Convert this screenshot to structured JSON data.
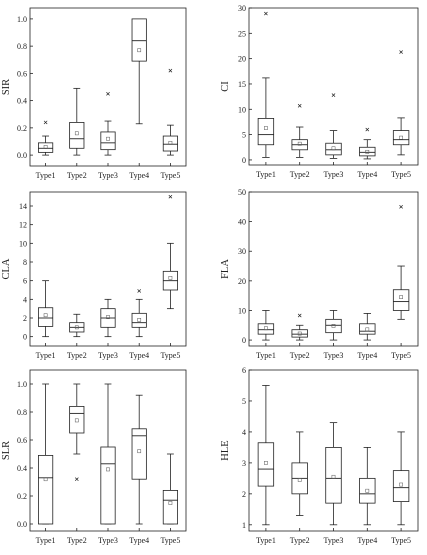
{
  "colors": {
    "axis": "#222222",
    "box": "#222222",
    "median": "#222222",
    "mean_marker": "#555555",
    "outlier": "#222222"
  },
  "chart_data": [
    {
      "type": "boxplot",
      "ylabel": "SIR",
      "ylim": [
        -0.08,
        1.08
      ],
      "yticks": [
        0.0,
        0.2,
        0.4,
        0.6,
        0.8,
        1.0
      ],
      "yticklabels": [
        "0.0",
        "0.2",
        "0.4",
        "0.6",
        "0.8",
        "1.0"
      ],
      "categories": [
        "Type1",
        "Type2",
        "Type3",
        "Type4",
        "Type5"
      ],
      "boxes": [
        {
          "whisker_low": 0.0,
          "q1": 0.02,
          "median": 0.05,
          "q3": 0.09,
          "whisker_high": 0.14,
          "mean": 0.06,
          "outliers": [
            0.24
          ]
        },
        {
          "whisker_low": 0.0,
          "q1": 0.05,
          "median": 0.12,
          "q3": 0.24,
          "whisker_high": 0.49,
          "mean": 0.16,
          "outliers": []
        },
        {
          "whisker_low": 0.0,
          "q1": 0.04,
          "median": 0.09,
          "q3": 0.17,
          "whisker_high": 0.25,
          "mean": 0.12,
          "outliers": [
            0.45
          ]
        },
        {
          "whisker_low": 0.23,
          "q1": 0.69,
          "median": 0.84,
          "q3": 1.0,
          "whisker_high": 1.0,
          "mean": 0.77,
          "outliers": []
        },
        {
          "whisker_low": 0.0,
          "q1": 0.03,
          "median": 0.08,
          "q3": 0.14,
          "whisker_high": 0.22,
          "mean": 0.09,
          "outliers": [
            0.62
          ]
        }
      ]
    },
    {
      "type": "boxplot",
      "ylabel": "CI",
      "ylim": [
        -1,
        30
      ],
      "yticks": [
        0,
        5,
        10,
        15,
        20,
        25,
        30
      ],
      "yticklabels": [
        "0",
        "5",
        "10",
        "15",
        "20",
        "25",
        "30"
      ],
      "categories": [
        "Type1",
        "Type2",
        "Type3",
        "Type4",
        "Type5"
      ],
      "boxes": [
        {
          "whisker_low": 0.5,
          "q1": 3.0,
          "median": 5.0,
          "q3": 8.2,
          "whisker_high": 16.2,
          "mean": 6.3,
          "outliers": [
            28.9
          ]
        },
        {
          "whisker_low": 0.5,
          "q1": 2.0,
          "median": 3.0,
          "q3": 4.0,
          "whisker_high": 6.5,
          "mean": 3.2,
          "outliers": [
            10.7
          ]
        },
        {
          "whisker_low": 0.3,
          "q1": 1.0,
          "median": 2.0,
          "q3": 3.3,
          "whisker_high": 5.8,
          "mean": 2.3,
          "outliers": [
            12.8
          ]
        },
        {
          "whisker_low": 0.2,
          "q1": 0.8,
          "median": 1.5,
          "q3": 2.5,
          "whisker_high": 4.0,
          "mean": 1.6,
          "outliers": [
            6.0
          ]
        },
        {
          "whisker_low": 1.0,
          "q1": 3.0,
          "median": 4.0,
          "q3": 5.8,
          "whisker_high": 8.3,
          "mean": 4.4,
          "outliers": [
            21.3
          ]
        }
      ]
    },
    {
      "type": "boxplot",
      "ylabel": "CLA",
      "ylim": [
        -1,
        15.5
      ],
      "yticks": [
        0,
        2,
        4,
        6,
        8,
        10,
        12,
        14
      ],
      "yticklabels": [
        "0",
        "2",
        "4",
        "6",
        "8",
        "10",
        "12",
        "14"
      ],
      "categories": [
        "Type1",
        "Type2",
        "Type3",
        "Type4",
        "Type5"
      ],
      "boxes": [
        {
          "whisker_low": 0.0,
          "q1": 1.1,
          "median": 2.0,
          "q3": 3.1,
          "whisker_high": 6.0,
          "mean": 2.3,
          "outliers": []
        },
        {
          "whisker_low": 0.0,
          "q1": 0.5,
          "median": 1.0,
          "q3": 1.5,
          "whisker_high": 2.4,
          "mean": 1.0,
          "outliers": []
        },
        {
          "whisker_low": 0.0,
          "q1": 1.0,
          "median": 2.0,
          "q3": 3.0,
          "whisker_high": 4.0,
          "mean": 2.1,
          "outliers": []
        },
        {
          "whisker_low": 0.0,
          "q1": 1.0,
          "median": 1.5,
          "q3": 2.5,
          "whisker_high": 4.0,
          "mean": 1.8,
          "outliers": [
            4.9
          ]
        },
        {
          "whisker_low": 3.0,
          "q1": 5.0,
          "median": 6.0,
          "q3": 7.0,
          "whisker_high": 10.0,
          "mean": 6.3,
          "outliers": [
            15.0
          ]
        }
      ]
    },
    {
      "type": "boxplot",
      "ylabel": "FLA",
      "ylim": [
        -2,
        50
      ],
      "yticks": [
        0,
        10,
        20,
        30,
        40,
        50
      ],
      "yticklabels": [
        "0",
        "10",
        "20",
        "30",
        "40",
        "50"
      ],
      "categories": [
        "Type1",
        "Type2",
        "Type3",
        "Type4",
        "Type5"
      ],
      "boxes": [
        {
          "whisker_low": 0.0,
          "q1": 2.0,
          "median": 3.5,
          "q3": 5.5,
          "whisker_high": 10.0,
          "mean": 4.0,
          "outliers": []
        },
        {
          "whisker_low": 0.0,
          "q1": 1.0,
          "median": 2.0,
          "q3": 3.5,
          "whisker_high": 5.0,
          "mean": 2.2,
          "outliers": [
            8.3
          ]
        },
        {
          "whisker_low": 0.0,
          "q1": 2.5,
          "median": 5.0,
          "q3": 7.0,
          "whisker_high": 10.0,
          "mean": 4.8,
          "outliers": []
        },
        {
          "whisker_low": 0.0,
          "q1": 2.0,
          "median": 3.0,
          "q3": 5.5,
          "whisker_high": 9.0,
          "mean": 3.6,
          "outliers": []
        },
        {
          "whisker_low": 7.0,
          "q1": 10.0,
          "median": 13.0,
          "q3": 17.0,
          "whisker_high": 25.0,
          "mean": 14.5,
          "outliers": [
            45.0
          ]
        }
      ]
    },
    {
      "type": "boxplot",
      "ylabel": "SLR",
      "ylim": [
        -0.05,
        1.1
      ],
      "yticks": [
        0.0,
        0.2,
        0.4,
        0.6,
        0.8,
        1.0
      ],
      "yticklabels": [
        "0.0",
        "0.2",
        "0.4",
        "0.6",
        "0.8",
        "1.0"
      ],
      "categories": [
        "Type1",
        "Type2",
        "Type3",
        "Type4",
        "Type5"
      ],
      "boxes": [
        {
          "whisker_low": 0.0,
          "q1": 0.0,
          "median": 0.33,
          "q3": 0.49,
          "whisker_high": 1.0,
          "mean": 0.32,
          "outliers": []
        },
        {
          "whisker_low": 0.5,
          "q1": 0.65,
          "median": 0.79,
          "q3": 0.84,
          "whisker_high": 1.0,
          "mean": 0.74,
          "outliers": [
            0.32
          ]
        },
        {
          "whisker_low": 0.0,
          "q1": 0.0,
          "median": 0.43,
          "q3": 0.55,
          "whisker_high": 1.0,
          "mean": 0.39,
          "outliers": []
        },
        {
          "whisker_low": 0.0,
          "q1": 0.32,
          "median": 0.63,
          "q3": 0.68,
          "whisker_high": 0.92,
          "mean": 0.52,
          "outliers": []
        },
        {
          "whisker_low": 0.0,
          "q1": 0.0,
          "median": 0.17,
          "q3": 0.24,
          "whisker_high": 0.5,
          "mean": 0.15,
          "outliers": []
        }
      ]
    },
    {
      "type": "boxplot",
      "ylabel": "HLE",
      "ylim": [
        0.8,
        6.0
      ],
      "yticks": [
        1,
        2,
        3,
        4,
        5,
        6
      ],
      "yticklabels": [
        "1",
        "2",
        "3",
        "4",
        "5",
        "6"
      ],
      "categories": [
        "Type1",
        "Type2",
        "Type3",
        "Type4",
        "Type5"
      ],
      "boxes": [
        {
          "whisker_low": 1.0,
          "q1": 2.25,
          "median": 2.8,
          "q3": 3.65,
          "whisker_high": 5.5,
          "mean": 3.0,
          "outliers": []
        },
        {
          "whisker_low": 1.3,
          "q1": 2.0,
          "median": 2.5,
          "q3": 3.0,
          "whisker_high": 4.0,
          "mean": 2.45,
          "outliers": []
        },
        {
          "whisker_low": 1.0,
          "q1": 1.7,
          "median": 2.5,
          "q3": 3.5,
          "whisker_high": 4.3,
          "mean": 2.55,
          "outliers": []
        },
        {
          "whisker_low": 1.0,
          "q1": 1.7,
          "median": 2.0,
          "q3": 2.5,
          "whisker_high": 3.5,
          "mean": 2.1,
          "outliers": []
        },
        {
          "whisker_low": 1.0,
          "q1": 1.75,
          "median": 2.2,
          "q3": 2.75,
          "whisker_high": 4.0,
          "mean": 2.3,
          "outliers": []
        }
      ]
    }
  ]
}
